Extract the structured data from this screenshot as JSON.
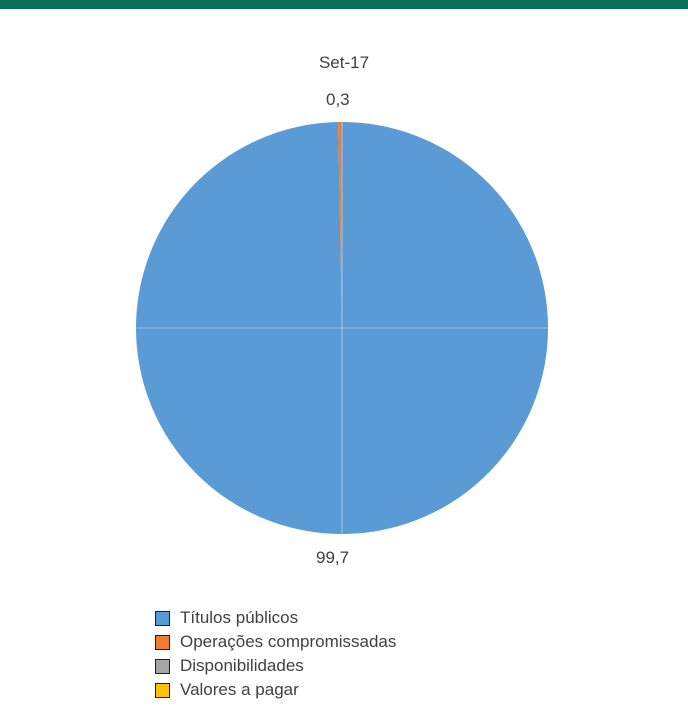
{
  "chart_data": {
    "type": "pie",
    "title": "Set-17",
    "slices": [
      {
        "label": "Títulos públicos",
        "value": 99.7,
        "display": "99,7",
        "color": "#5b9bd5"
      },
      {
        "label": "Operações compromissadas",
        "value": 0.3,
        "display": "0,3",
        "color": "#ed7d31"
      },
      {
        "label": "Disponibilidades",
        "value": 0.0,
        "color": "#a5a5a5"
      },
      {
        "label": "Valores a pagar",
        "value": 0.0,
        "color": "#ffc000"
      }
    ],
    "legend_position": "bottom"
  }
}
